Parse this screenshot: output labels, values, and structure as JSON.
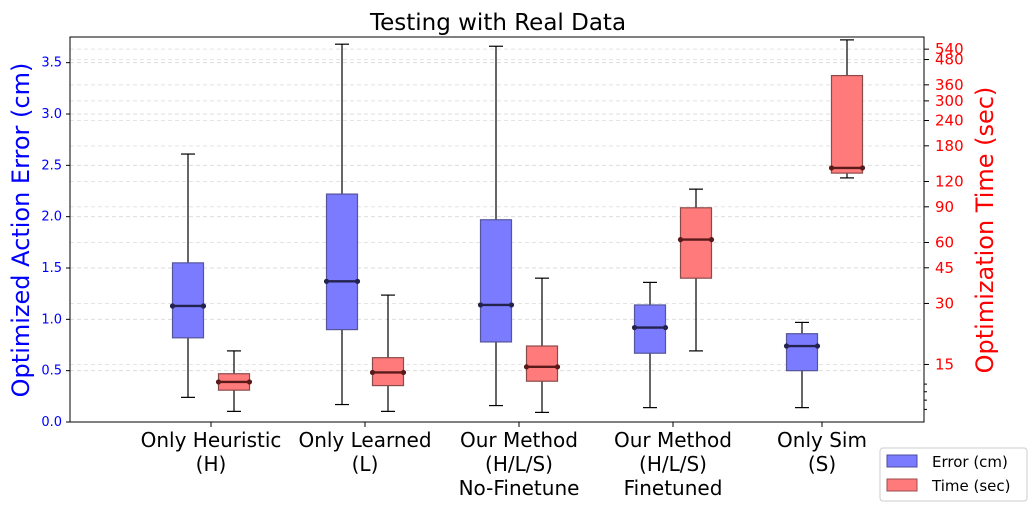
{
  "chart_data": {
    "type": "boxplot",
    "title": "Testing with Real Data",
    "ylabel": "Optimized Action Error (cm)",
    "ylabel_right": "Optimization Time (sec)",
    "ylim": [
      0,
      3.75
    ],
    "ylim_right_log": [
      7.8,
      620
    ],
    "yticks": [
      "0.0",
      "0.5",
      "1.0",
      "1.5",
      "2.0",
      "2.5",
      "3.0",
      "3.5"
    ],
    "yticks_right": [
      "15",
      "30",
      "45",
      "60",
      "90",
      "120",
      "180",
      "240",
      "300",
      "360",
      "480",
      "540"
    ],
    "categories": [
      {
        "line1": "Only Heuristic",
        "line2": "(H)",
        "line3": ""
      },
      {
        "line1": "Only Learned",
        "line2": "(L)",
        "line3": ""
      },
      {
        "line1": "Our Method",
        "line2": "(H/L/S)",
        "line3": "No-Finetune"
      },
      {
        "line1": "Our Method",
        "line2": "(H/L/S)",
        "line3": "Finetuned"
      },
      {
        "line1": "Only Sim",
        "line2": "(S)",
        "line3": ""
      }
    ],
    "series": [
      {
        "name": "Error (cm)",
        "color": "#7b7bff",
        "axis": "left",
        "boxes": [
          {
            "whislo": 0.24,
            "q1": 0.82,
            "med": 1.13,
            "q3": 1.55,
            "whishi": 2.61
          },
          {
            "whislo": 0.17,
            "q1": 0.9,
            "med": 1.37,
            "q3": 2.22,
            "whishi": 3.68
          },
          {
            "whislo": 0.16,
            "q1": 0.78,
            "med": 1.14,
            "q3": 1.97,
            "whishi": 3.66
          },
          {
            "whislo": 0.14,
            "q1": 0.67,
            "med": 0.92,
            "q3": 1.14,
            "whishi": 1.36
          },
          {
            "whislo": 0.14,
            "q1": 0.5,
            "med": 0.74,
            "q3": 0.86,
            "whishi": 0.97
          }
        ]
      },
      {
        "name": "Time (sec)",
        "color": "#ff7b7b",
        "axis": "right",
        "boxes": [
          {
            "whislo": 8.8,
            "q1": 11.2,
            "med": 12.3,
            "q3": 13.5,
            "whishi": 17.5
          },
          {
            "whislo": 8.8,
            "q1": 11.8,
            "med": 13.7,
            "q3": 16.2,
            "whishi": 33
          },
          {
            "whislo": 8.7,
            "q1": 12.4,
            "med": 14.6,
            "q3": 18.5,
            "whishi": 40
          },
          {
            "whislo": 17.5,
            "q1": 40,
            "med": 62,
            "q3": 89,
            "whishi": 110
          },
          {
            "whislo": 125,
            "q1": 132,
            "med": 140,
            "q3": 400,
            "whishi": 600
          }
        ]
      }
    ],
    "legend_position": "bottom-right"
  }
}
